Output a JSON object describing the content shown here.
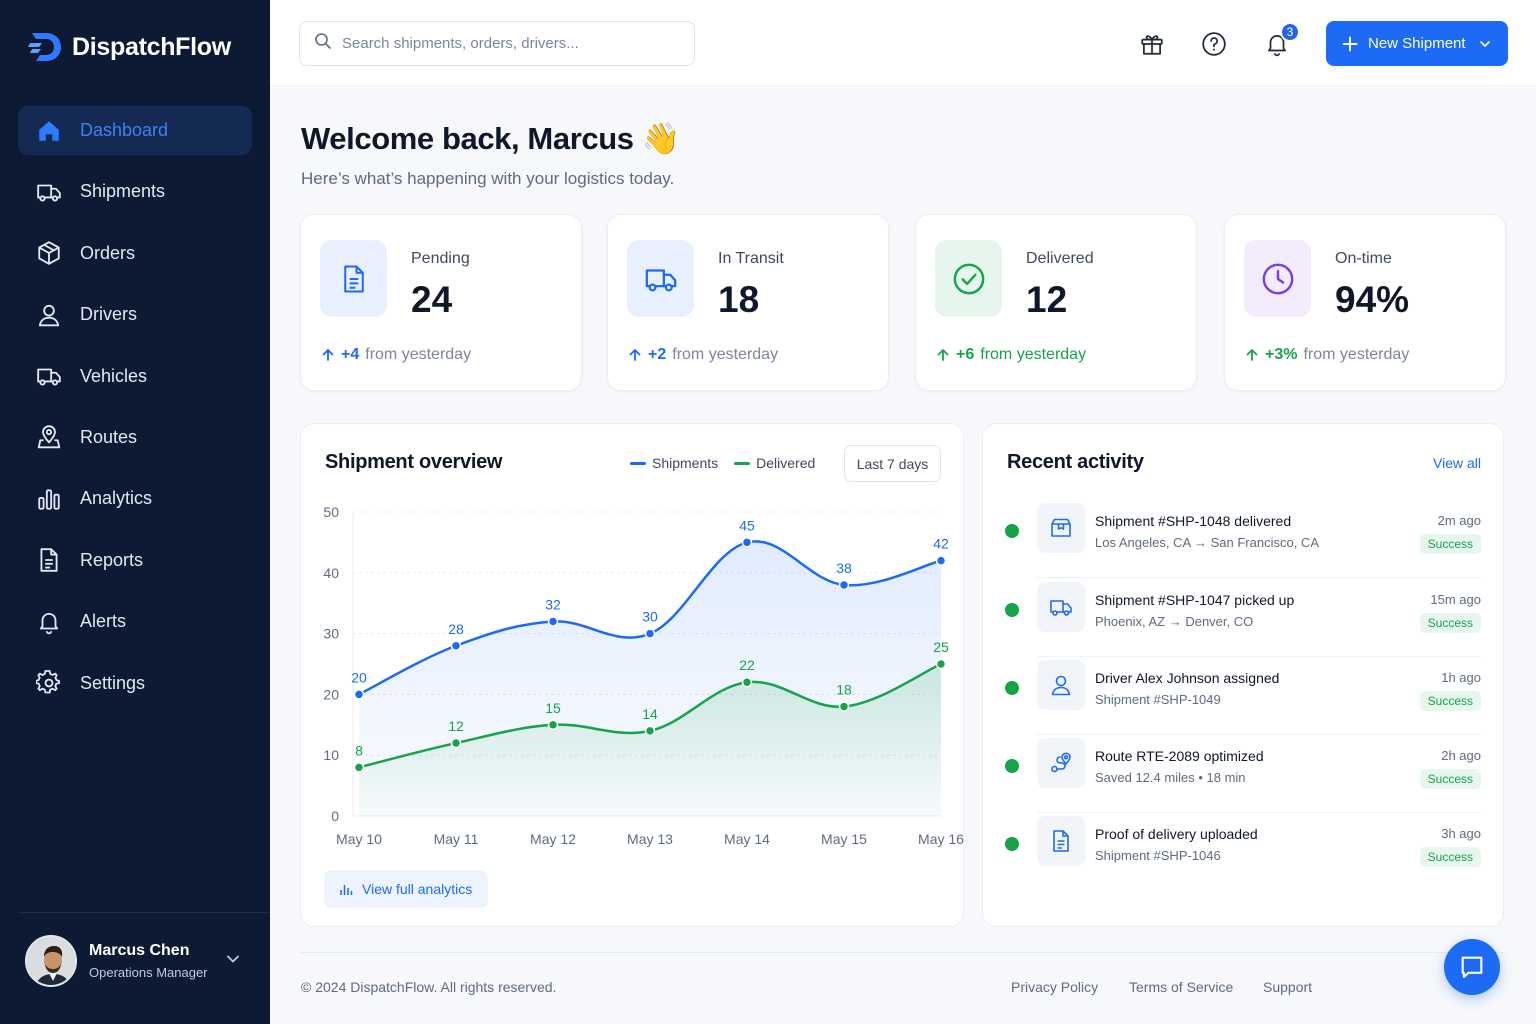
{
  "app": {
    "name": "DispatchFlow"
  },
  "colors": {
    "accent": "#1d6af5",
    "sidebar": "#0d1a33",
    "success": "#16a34a",
    "purple": "#7c3aed"
  },
  "sidebar": {
    "items": [
      {
        "label": "Dashboard",
        "icon": "home-icon",
        "active": true
      },
      {
        "label": "Shipments",
        "icon": "truck-icon"
      },
      {
        "label": "Orders",
        "icon": "box-icon"
      },
      {
        "label": "Drivers",
        "icon": "user-icon"
      },
      {
        "label": "Vehicles",
        "icon": "truck-icon"
      },
      {
        "label": "Routes",
        "icon": "map-pin-icon"
      },
      {
        "label": "Analytics",
        "icon": "bar-chart-icon"
      },
      {
        "label": "Reports",
        "icon": "document-icon"
      },
      {
        "label": "Alerts",
        "icon": "bell-icon"
      },
      {
        "label": "Settings",
        "icon": "gear-icon"
      }
    ],
    "user": {
      "name": "Marcus Chen",
      "role": "Operations Manager"
    }
  },
  "topbar": {
    "search_placeholder": "Search shipments, orders, drivers...",
    "notification_count": "3",
    "new_button_label": "New Shipment"
  },
  "header": {
    "welcome": "Welcome back, Marcus 👋",
    "subtitle": "Here’s what’s happening with your logistics today."
  },
  "stats": [
    {
      "label": "Pending",
      "value": "24",
      "delta": "+4",
      "delta_text": "from yesterday",
      "color": "#1d6af5",
      "icon": "document-icon"
    },
    {
      "label": "In Transit",
      "value": "18",
      "delta": "+2",
      "delta_text": "from yesterday",
      "color": "#1d6af5",
      "icon": "truck-icon"
    },
    {
      "label": "Delivered",
      "value": "12",
      "delta": "+6",
      "delta_text": "from yesterday",
      "color": "#16a34a",
      "icon": "check-circle-icon"
    },
    {
      "label": "On-time",
      "value": "94%",
      "delta": "+3%",
      "delta_text": "from yesterday",
      "color": "#16a34a",
      "icon": "clock-icon"
    }
  ],
  "overview": {
    "title": "Shipment overview",
    "range_label": "Last 7 days",
    "link_label": "View full analytics"
  },
  "chart_data": {
    "type": "line",
    "categories": [
      "May 10",
      "May 11",
      "May 12",
      "May 13",
      "May 14",
      "May 15",
      "May 16"
    ],
    "series": [
      {
        "name": "Shipments",
        "values": [
          20,
          28,
          32,
          30,
          45,
          38,
          42
        ],
        "color": "#1d6af5"
      },
      {
        "name": "Delivered",
        "values": [
          8,
          12,
          15,
          14,
          22,
          18,
          25
        ],
        "color": "#16a34a"
      }
    ],
    "ylim": [
      0,
      50
    ],
    "yticks": [
      0,
      10,
      20,
      30,
      40,
      50
    ],
    "grid": true,
    "legend": "top"
  },
  "activity": {
    "title": "Recent activity",
    "view_all": "View all",
    "items": [
      {
        "title": "Shipment #SHP-1048 delivered",
        "sub": "Los Angeles, CA  →  San Francisco, CA",
        "time": "2m ago",
        "status": "Success",
        "icon": "package-icon"
      },
      {
        "title": "Shipment #SHP-1047 picked up",
        "sub": "Phoenix, AZ  →  Denver, CO",
        "time": "15m ago",
        "status": "Success",
        "icon": "truck-icon"
      },
      {
        "title": "Driver Alex Johnson assigned",
        "sub": "Shipment #SHP-1049",
        "time": "1h ago",
        "status": "Success",
        "icon": "user-icon"
      },
      {
        "title": "Route RTE-2089 optimized",
        "sub": "Saved 12.4 miles • 18 min",
        "time": "2h ago",
        "status": "Success",
        "icon": "route-icon"
      },
      {
        "title": "Proof of delivery uploaded",
        "sub": "Shipment #SHP-1046",
        "time": "3h ago",
        "status": "Success",
        "icon": "document-icon"
      }
    ]
  },
  "footer": {
    "copyright": "© 2024 DispatchFlow. All rights reserved.",
    "links": [
      "Privacy Policy",
      "Terms of Service",
      "Support"
    ]
  }
}
